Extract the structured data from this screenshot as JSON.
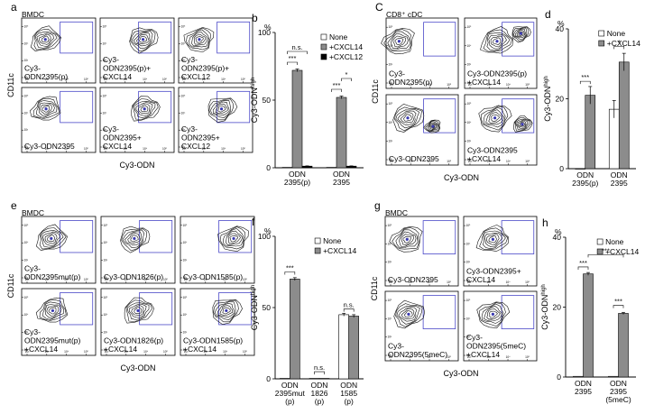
{
  "panels": {
    "a": {
      "letter": "a",
      "cell_type": "BMDC",
      "ylabel": "CD11c",
      "xlabel": "Cy3-ODN",
      "plots": [
        {
          "lines": [
            "Cy3-",
            "ODN2395(p)"
          ]
        },
        {
          "lines": [
            "Cy3-",
            "ODN2395(p)+",
            "CXCL14"
          ]
        },
        {
          "lines": [
            "Cy3-",
            "ODN2395(p)+",
            "CXCL12"
          ]
        },
        {
          "lines": [
            "Cy3-ODN2395"
          ]
        },
        {
          "lines": [
            "Cy3-",
            "ODN2395+",
            "CXCL14"
          ]
        },
        {
          "lines": [
            "Cy3-",
            "ODN2395+",
            "CXCL12"
          ]
        }
      ]
    },
    "c": {
      "letter": "C",
      "cell_type": "CD8⁺ cDC",
      "ylabel": "CD11c",
      "xlabel": "Cy3-ODN",
      "plots": [
        {
          "lines": [
            "Cy3-",
            "ODN2395(p)"
          ]
        },
        {
          "lines": [
            "Cy3-ODN2395(p)",
            "+CXCL14"
          ]
        },
        {
          "lines": [
            "Cy3-ODN2395"
          ]
        },
        {
          "lines": [
            "Cy3-ODN2395",
            "+CXCL14"
          ]
        }
      ]
    },
    "e": {
      "letter": "e",
      "cell_type": "BMDC",
      "ylabel": "CD11c",
      "xlabel": "Cy3-ODN",
      "plots": [
        {
          "lines": [
            "Cy3-",
            "ODN2395mut(p)"
          ]
        },
        {
          "lines": [
            "Cy3-ODN1826(p)"
          ]
        },
        {
          "lines": [
            "Cy3-ODN1585(p)"
          ]
        },
        {
          "lines": [
            "Cy3-",
            "ODN2395mut(p)",
            "+CXCL14"
          ]
        },
        {
          "lines": [
            "Cy3-ODN1826(p)",
            "+CXCL14"
          ]
        },
        {
          "lines": [
            "Cy3-ODN1585(p)",
            "+CXCL14"
          ]
        }
      ]
    },
    "g": {
      "letter": "g",
      "cell_type": "BMDC",
      "ylabel": "CD11c",
      "xlabel": "Cy3-ODN",
      "plots": [
        {
          "lines": [
            "Cy3-ODN2395"
          ]
        },
        {
          "lines": [
            "Cy3-ODN2395+",
            "CXCL14"
          ]
        },
        {
          "lines": [
            "Cy3-",
            "ODN2395(5meC)"
          ]
        },
        {
          "lines": [
            "Cy3-",
            "ODN2395(5meC)",
            "+CXCL14"
          ]
        }
      ]
    },
    "tick_labels": {
      "x": [
        "10²",
        "10³",
        "10⁴",
        "10⁵"
      ],
      "y": [
        "10²",
        "10³",
        "10⁴",
        "10⁵"
      ]
    }
  },
  "chart_data": [
    {
      "id": "b",
      "letter": "b",
      "type": "bar",
      "title": "",
      "ylabel": "Cy3-ODN",
      "ylabel_sup": "high",
      "unit": "%",
      "ylim": [
        0,
        100
      ],
      "yticks": [
        0,
        50,
        100
      ],
      "categories": [
        [
          "ODN",
          "2395(p)"
        ],
        [
          "ODN",
          "2395"
        ]
      ],
      "series": [
        {
          "name": "None",
          "color": "#ffffff",
          "values": [
            0.3,
            0.3
          ],
          "errors": [
            0,
            0
          ]
        },
        {
          "name": "+CXCL14",
          "color": "#8c8c8c",
          "values": [
            72,
            52
          ],
          "errors": [
            1,
            1
          ]
        },
        {
          "name": "+CXCL12",
          "color": "#000000",
          "values": [
            1.2,
            1.2
          ],
          "errors": [
            0.2,
            0.2
          ]
        }
      ],
      "legend": "top-right",
      "annotations": [
        {
          "text": "n.s.",
          "group": 0,
          "from": 0,
          "to": 2,
          "y": 86
        },
        {
          "text": "***",
          "group": 0,
          "from": 0,
          "to": 1,
          "y": 78
        },
        {
          "text": "*",
          "group": 1,
          "from": 1,
          "to": 2,
          "y": 66
        },
        {
          "text": "***",
          "group": 1,
          "from": 0,
          "to": 1,
          "y": 58
        }
      ]
    },
    {
      "id": "d",
      "letter": "d",
      "type": "bar",
      "title": "",
      "ylabel": "Cy3-ODN",
      "ylabel_sup": "high",
      "unit": "%",
      "ylim": [
        0,
        40
      ],
      "yticks": [
        0,
        20,
        40
      ],
      "categories": [
        [
          "ODN",
          "2395(p)"
        ],
        [
          "ODN",
          "2395"
        ]
      ],
      "series": [
        {
          "name": "None",
          "color": "#ffffff",
          "values": [
            0,
            17
          ],
          "errors": [
            0,
            2.5
          ]
        },
        {
          "name": "+CXCL14",
          "color": "#8c8c8c",
          "values": [
            21,
            30.5
          ],
          "errors": [
            2.5,
            2.5
          ]
        }
      ],
      "legend": "top-right",
      "annotations": [
        {
          "text": "***",
          "group": 0,
          "from": 0,
          "to": 1,
          "y": 25
        },
        {
          "text": "*",
          "group": 1,
          "from": 0,
          "to": 1,
          "y": 35
        }
      ]
    },
    {
      "id": "f",
      "letter": "f",
      "type": "bar",
      "title": "",
      "ylabel": "Cy3-ODN",
      "ylabel_sup": "high",
      "unit": "%",
      "ylim": [
        0,
        100
      ],
      "yticks": [
        0,
        50,
        100
      ],
      "categories": [
        [
          "ODN",
          "2395mut",
          "(p)"
        ],
        [
          "ODN",
          "1826",
          "(p)"
        ],
        [
          "ODN",
          "1585",
          "(p)"
        ]
      ],
      "series": [
        {
          "name": "None",
          "color": "#ffffff",
          "values": [
            0.3,
            0.3,
            45
          ],
          "errors": [
            0,
            0,
            1
          ]
        },
        {
          "name": "+CXCL14",
          "color": "#8c8c8c",
          "values": [
            70,
            0.3,
            44
          ],
          "errors": [
            1,
            0,
            1
          ]
        }
      ],
      "legend": "top-right",
      "annotations": [
        {
          "text": "***",
          "group": 0,
          "from": 0,
          "to": 1,
          "y": 75
        },
        {
          "text": "n.s.",
          "group": 1,
          "from": 0,
          "to": 1,
          "y": 5
        },
        {
          "text": "n.s.",
          "group": 2,
          "from": 0,
          "to": 1,
          "y": 49
        }
      ]
    },
    {
      "id": "h",
      "letter": "h",
      "type": "bar",
      "title": "",
      "ylabel": "Cy3-ODN",
      "ylabel_sup": "high",
      "unit": "%",
      "ylim": [
        0,
        40
      ],
      "yticks": [
        0,
        20,
        40
      ],
      "categories": [
        [
          "ODN",
          "2395"
        ],
        [
          "ODN",
          "2395",
          "(5meC)"
        ]
      ],
      "series": [
        {
          "name": "None",
          "color": "#ffffff",
          "values": [
            0.2,
            0.2
          ],
          "errors": [
            0,
            0
          ]
        },
        {
          "name": "+CXCL14",
          "color": "#8c8c8c",
          "values": [
            29.5,
            18.2
          ],
          "errors": [
            0.4,
            0.3
          ]
        }
      ],
      "legend": "top-right",
      "annotations": [
        {
          "text": "***",
          "group": 0,
          "from": 0,
          "to": 1,
          "y": 31.5
        },
        {
          "text": "***",
          "group": 1,
          "from": 0,
          "to": 1,
          "y": 20.5
        },
        {
          "text": "***",
          "span": [
            0,
            1
          ],
          "y": 35
        }
      ]
    }
  ]
}
